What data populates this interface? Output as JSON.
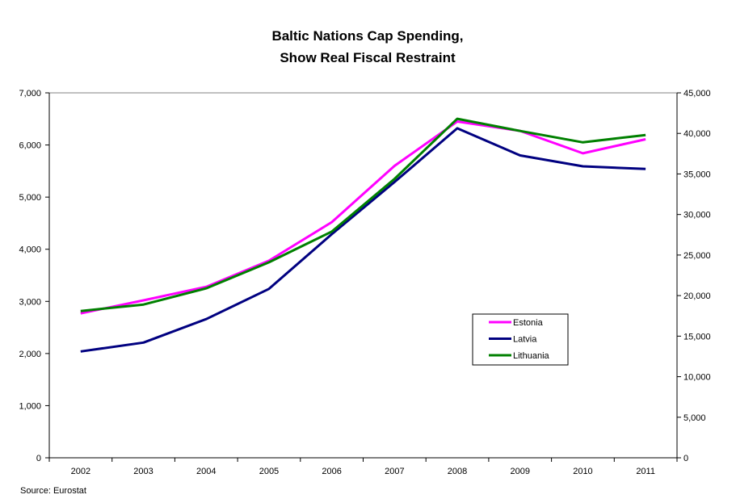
{
  "chart_data": {
    "type": "line",
    "title": [
      "Baltic Nations Cap Spending,",
      "Show Real Fiscal Restraint"
    ],
    "source": "Source: Eurostat",
    "categories": [
      "2002",
      "2003",
      "2004",
      "2005",
      "2006",
      "2007",
      "2008",
      "2009",
      "2010",
      "2011"
    ],
    "y_left": {
      "range": [
        0,
        7000
      ],
      "ticks": [
        "0",
        "1,000",
        "2,000",
        "3,000",
        "4,000",
        "5,000",
        "6,000",
        "7,000"
      ]
    },
    "y_right": {
      "range": [
        0,
        45000
      ],
      "ticks": [
        "0",
        "5,000",
        "10,000",
        "15,000",
        "20,000",
        "25,000",
        "30,000",
        "35,000",
        "40,000",
        "45,000"
      ]
    },
    "legend_position": "right-middle",
    "series": [
      {
        "name": "Estonia",
        "color": "#FF00FF",
        "axis": "left",
        "values": [
          2770,
          3020,
          3280,
          3780,
          4520,
          5600,
          6450,
          6270,
          5840,
          6110
        ]
      },
      {
        "name": "Latvia",
        "color": "#000080",
        "axis": "left",
        "values": [
          2040,
          2210,
          2660,
          3240,
          4290,
          5290,
          6320,
          5800,
          5590,
          5540
        ]
      },
      {
        "name": "Lithuania",
        "color": "#008000",
        "axis": "right",
        "values": [
          18100,
          18900,
          20900,
          24100,
          27900,
          34400,
          41800,
          40300,
          38900,
          39800
        ]
      }
    ]
  }
}
